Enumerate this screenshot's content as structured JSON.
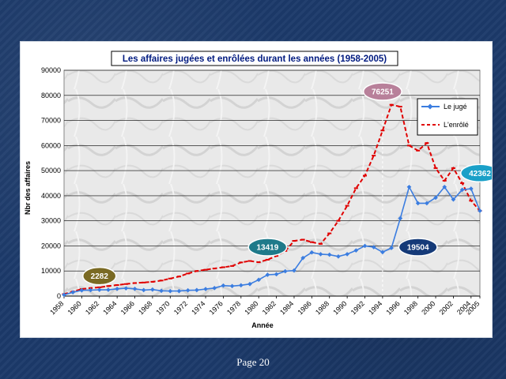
{
  "footer": {
    "page_label": "Page 20"
  },
  "chart_data": {
    "type": "line",
    "title": "Les affaires jugées et enrôlées durant les années (1958-2005)",
    "xlabel": "Année",
    "ylabel": "Nbr des affaires",
    "ylim": [
      0,
      90000
    ],
    "yticks": [
      0,
      10000,
      20000,
      30000,
      40000,
      50000,
      60000,
      70000,
      80000,
      90000
    ],
    "xlim": [
      1958,
      2005
    ],
    "xticks": [
      1958,
      1960,
      1962,
      1964,
      1966,
      1968,
      1970,
      1972,
      1974,
      1976,
      1978,
      1980,
      1982,
      1984,
      1986,
      1988,
      1990,
      1992,
      1994,
      1996,
      1998,
      2000,
      2002,
      2004,
      2005
    ],
    "grid": true,
    "legend_position": "top-right",
    "x": [
      1958,
      1959,
      1960,
      1961,
      1962,
      1963,
      1964,
      1965,
      1966,
      1967,
      1968,
      1969,
      1970,
      1971,
      1972,
      1973,
      1974,
      1975,
      1976,
      1977,
      1978,
      1979,
      1980,
      1981,
      1982,
      1983,
      1984,
      1985,
      1986,
      1987,
      1988,
      1989,
      1990,
      1991,
      1992,
      1993,
      1994,
      1995,
      1996,
      1997,
      1998,
      1999,
      2000,
      2001,
      2002,
      2003,
      2004,
      2005
    ],
    "series": [
      {
        "name": "Le jugé",
        "color": "#3b7de0",
        "marker": "diamond",
        "values": [
          500,
          1500,
          2282,
          2400,
          2500,
          2500,
          2900,
          3100,
          2900,
          2400,
          2600,
          2100,
          2000,
          2000,
          2300,
          2400,
          2800,
          3200,
          4200,
          4000,
          4300,
          4800,
          6500,
          8500,
          8700,
          9900,
          10200,
          15200,
          17400,
          16700,
          16500,
          15800,
          16700,
          18200,
          20000,
          19504,
          17500,
          19200,
          31000,
          43500,
          37000,
          37000,
          39200,
          43500,
          38500,
          42362,
          42800,
          34000
        ]
      },
      {
        "name": "L'enrôlé",
        "color": "#e00000",
        "marker": "dash",
        "values": [
          800,
          1800,
          2800,
          3200,
          3500,
          4000,
          4400,
          4800,
          5200,
          5400,
          5700,
          6200,
          7000,
          7800,
          9000,
          10000,
          10500,
          11000,
          11500,
          12000,
          13419,
          14000,
          13500,
          14500,
          16000,
          18000,
          22000,
          22500,
          21500,
          20800,
          25000,
          30000,
          36000,
          43000,
          48000,
          56000,
          66000,
          76251,
          75500,
          60000,
          58000,
          61000,
          51000,
          46000,
          51000,
          45000,
          38000,
          34000
        ]
      }
    ],
    "annotations": [
      {
        "text": "2282",
        "x": 1962,
        "y": 8000,
        "fill": "#7a6a24"
      },
      {
        "text": "13419",
        "x": 1981,
        "y": 19500,
        "fill": "#1f7a8a"
      },
      {
        "text": "76251",
        "x": 1994,
        "y": 81500,
        "fill": "#b8809a"
      },
      {
        "text": "19504",
        "x": 1998,
        "y": 19500,
        "fill": "#153a78"
      },
      {
        "text": "42362",
        "x": 2005,
        "y": 49000,
        "fill": "#1aa0c8"
      }
    ],
    "marker_line": {
      "x": 1994
    }
  }
}
